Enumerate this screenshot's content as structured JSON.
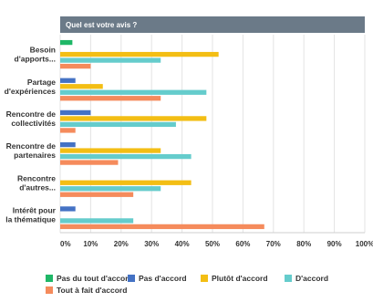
{
  "chart_data": {
    "type": "bar",
    "orientation": "horizontal",
    "title": "Quel est votre avis ?",
    "categories": [
      "Besoin d'apports...",
      "Partage d'expériences",
      "Rencontre de collectivités",
      "Rencontre de partenaires",
      "Rencontre d'autres...",
      "Intérêt pour la thématique"
    ],
    "series": [
      {
        "name": "Pas du tout d'accord",
        "color": "#1fb767",
        "values": [
          4,
          0,
          0,
          0,
          0,
          0
        ]
      },
      {
        "name": "Pas d'accord",
        "color": "#4472c4",
        "values": [
          0,
          5,
          10,
          5,
          0,
          5
        ]
      },
      {
        "name": "Plutôt d'accord",
        "color": "#f3be14",
        "values": [
          52,
          14,
          48,
          33,
          43,
          0
        ]
      },
      {
        "name": "D'accord",
        "color": "#65cccc",
        "values": [
          33,
          48,
          38,
          43,
          33,
          24
        ]
      },
      {
        "name": "Tout à fait d'accord",
        "color": "#f58b5c",
        "values": [
          10,
          33,
          5,
          19,
          24,
          67
        ]
      }
    ],
    "xlim": [
      0,
      100
    ],
    "x_ticks": [
      "0%",
      "10%",
      "20%",
      "30%",
      "40%",
      "50%",
      "60%",
      "70%",
      "80%",
      "90%",
      "100%"
    ],
    "xlabel": "",
    "ylabel": "",
    "grid": "vertical",
    "legend": "bottom"
  }
}
